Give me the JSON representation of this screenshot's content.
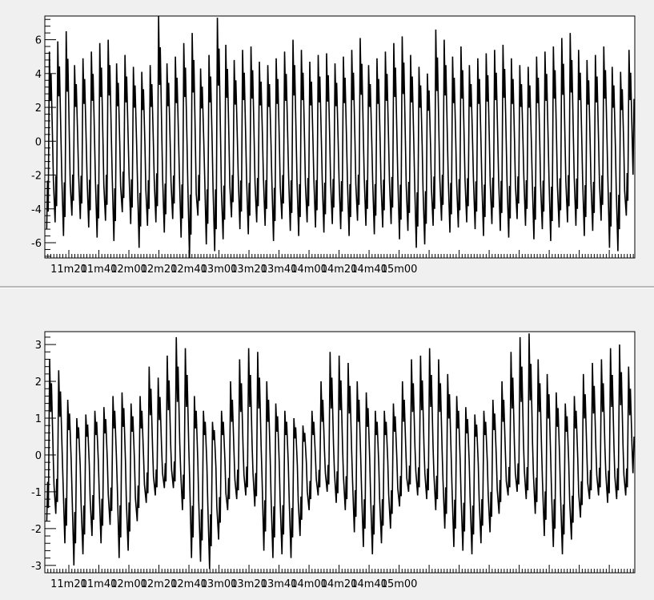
{
  "chart_data": [
    {
      "type": "line",
      "title": "",
      "xlabel": "",
      "ylabel": "",
      "x_range_seconds": [
        664,
        1057
      ],
      "ylim": [
        -6.9,
        7.4
      ],
      "yticks_major": [
        -6,
        -4,
        -2,
        0,
        2,
        4,
        6
      ],
      "xtick_labels": [
        "11m20",
        "11m40",
        "12m00",
        "12m20",
        "12m40",
        "13m00",
        "13m20",
        "13m40",
        "14m00",
        "14m20",
        "14m40",
        "15m00"
      ],
      "xtick_values_seconds": [
        680,
        700,
        720,
        740,
        760,
        780,
        800,
        820,
        840,
        860,
        880,
        900
      ],
      "grid": false,
      "series": [
        {
          "color": "#000000",
          "peaks": [
            5.3,
            5.9,
            6.5,
            4.5,
            4.9,
            5.3,
            5.8,
            6.0,
            4.6,
            5.1,
            4.4,
            4.1,
            4.5,
            7.4,
            4.6,
            5.0,
            5.8,
            6.4,
            4.3,
            5.1,
            7.3,
            5.7,
            4.8,
            5.4,
            5.6,
            4.7,
            4.5,
            4.9,
            5.3,
            6.0,
            5.4,
            4.7,
            5.1,
            5.2,
            4.6,
            5.0,
            5.4,
            6.1,
            4.5,
            4.9,
            5.3,
            5.8,
            6.2,
            5.1,
            4.4,
            4.0,
            6.6,
            6.0,
            5.0,
            5.6,
            4.5,
            4.9,
            5.2,
            5.4,
            5.7,
            4.9,
            4.5,
            4.4,
            5.0,
            5.3,
            5.6,
            6.1,
            6.4,
            5.4,
            4.8,
            5.1,
            5.6,
            4.4,
            4.1,
            5.4
          ],
          "troughs": [
            -5.2,
            -4.8,
            -5.6,
            -4.4,
            -4.6,
            -5.1,
            -5.7,
            -4.7,
            -5.9,
            -4.2,
            -4.9,
            -6.3,
            -5.0,
            -4.8,
            -5.4,
            -4.6,
            -5.7,
            -6.9,
            -4.4,
            -6.1,
            -6.5,
            -5.8,
            -4.5,
            -5.2,
            -5.5,
            -4.8,
            -5.0,
            -5.9,
            -4.6,
            -5.3,
            -5.6,
            -4.8,
            -5.1,
            -5.4,
            -4.9,
            -5.2,
            -5.6,
            -4.7,
            -5.0,
            -5.5,
            -5.1,
            -4.9,
            -5.8,
            -5.3,
            -6.3,
            -6.1,
            -5.0,
            -4.7,
            -5.4,
            -5.1,
            -4.8,
            -5.2,
            -5.6,
            -4.9,
            -5.3,
            -5.7,
            -4.6,
            -5.0,
            -5.8,
            -5.2,
            -5.9,
            -5.1,
            -4.8,
            -5.0,
            -5.6,
            -5.3,
            -4.7,
            -6.3,
            -6.5,
            -4.4
          ],
          "end_value": 2.5
        }
      ]
    },
    {
      "type": "line",
      "title": "",
      "xlabel": "",
      "ylabel": "",
      "x_range_seconds": [
        664,
        1057
      ],
      "ylim": [
        -3.2,
        3.35
      ],
      "yticks_major": [
        -3,
        -2,
        -1,
        0,
        1,
        2,
        3
      ],
      "xtick_labels": [
        "11m20",
        "11m40",
        "12m00",
        "12m20",
        "12m40",
        "13m00",
        "13m20",
        "13m40",
        "14m00",
        "14m20",
        "14m40",
        "15m00"
      ],
      "xtick_values_seconds": [
        680,
        700,
        720,
        740,
        760,
        780,
        800,
        820,
        840,
        860,
        880,
        900
      ],
      "grid": false,
      "series": [
        {
          "color": "#000000",
          "peaks": [
            2.6,
            2.3,
            1.5,
            1.0,
            1.1,
            1.2,
            1.3,
            1.6,
            1.7,
            1.4,
            1.6,
            2.4,
            2.1,
            2.7,
            3.2,
            2.9,
            1.6,
            1.2,
            0.9,
            1.2,
            2.0,
            2.6,
            2.9,
            2.8,
            2.0,
            1.4,
            1.2,
            1.0,
            0.8,
            1.2,
            2.0,
            2.8,
            2.7,
            2.5,
            2.0,
            1.7,
            1.2,
            1.2,
            1.4,
            2.0,
            2.6,
            2.7,
            2.9,
            2.6,
            2.2,
            1.6,
            1.3,
            1.1,
            1.2,
            1.5,
            2.0,
            2.8,
            3.2,
            3.3,
            2.6,
            2.2,
            1.7,
            1.4,
            1.6,
            2.2,
            2.5,
            2.6,
            2.9,
            3.0,
            2.4
          ],
          "troughs": [
            -1.8,
            -1.6,
            -2.4,
            -3.0,
            -2.7,
            -2.2,
            -2.4,
            -1.9,
            -2.8,
            -2.6,
            -1.8,
            -1.3,
            -1.1,
            -0.9,
            -0.9,
            -1.5,
            -2.8,
            -2.9,
            -3.1,
            -2.3,
            -1.5,
            -1.2,
            -1.1,
            -1.4,
            -2.6,
            -2.8,
            -2.7,
            -2.8,
            -2.2,
            -1.5,
            -1.1,
            -1.0,
            -1.3,
            -1.5,
            -2.1,
            -2.5,
            -2.7,
            -2.4,
            -2.0,
            -1.4,
            -1.0,
            -1.1,
            -1.2,
            -1.5,
            -2.0,
            -2.5,
            -2.6,
            -2.7,
            -2.4,
            -2.1,
            -1.6,
            -1.1,
            -1.0,
            -1.2,
            -1.6,
            -2.2,
            -2.5,
            -2.7,
            -2.3,
            -1.7,
            -1.2,
            -1.1,
            -1.3,
            -1.2,
            -1.1
          ],
          "end_value": 0.5
        }
      ]
    }
  ]
}
